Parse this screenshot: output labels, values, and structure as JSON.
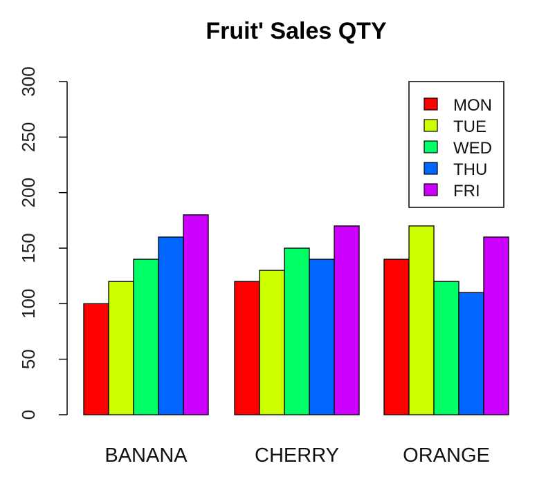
{
  "chart_data": {
    "type": "bar",
    "title": "Fruit' Sales QTY",
    "xlabel": "",
    "ylabel": "",
    "categories": [
      "BANANA",
      "CHERRY",
      "ORANGE"
    ],
    "series": [
      {
        "name": "MON",
        "color": "#ff0000",
        "values": [
          100,
          120,
          140
        ]
      },
      {
        "name": "TUE",
        "color": "#ccff00",
        "values": [
          120,
          130,
          170
        ]
      },
      {
        "name": "WED",
        "color": "#00ff66",
        "values": [
          140,
          150,
          120
        ]
      },
      {
        "name": "THU",
        "color": "#0066ff",
        "values": [
          160,
          140,
          110
        ]
      },
      {
        "name": "FRI",
        "color": "#cc00ff",
        "values": [
          180,
          170,
          160
        ]
      }
    ],
    "ylim": [
      0,
      300
    ],
    "yticks": [
      0,
      50,
      100,
      150,
      200,
      250,
      300
    ],
    "grid": false,
    "legend_position": "top-right"
  }
}
